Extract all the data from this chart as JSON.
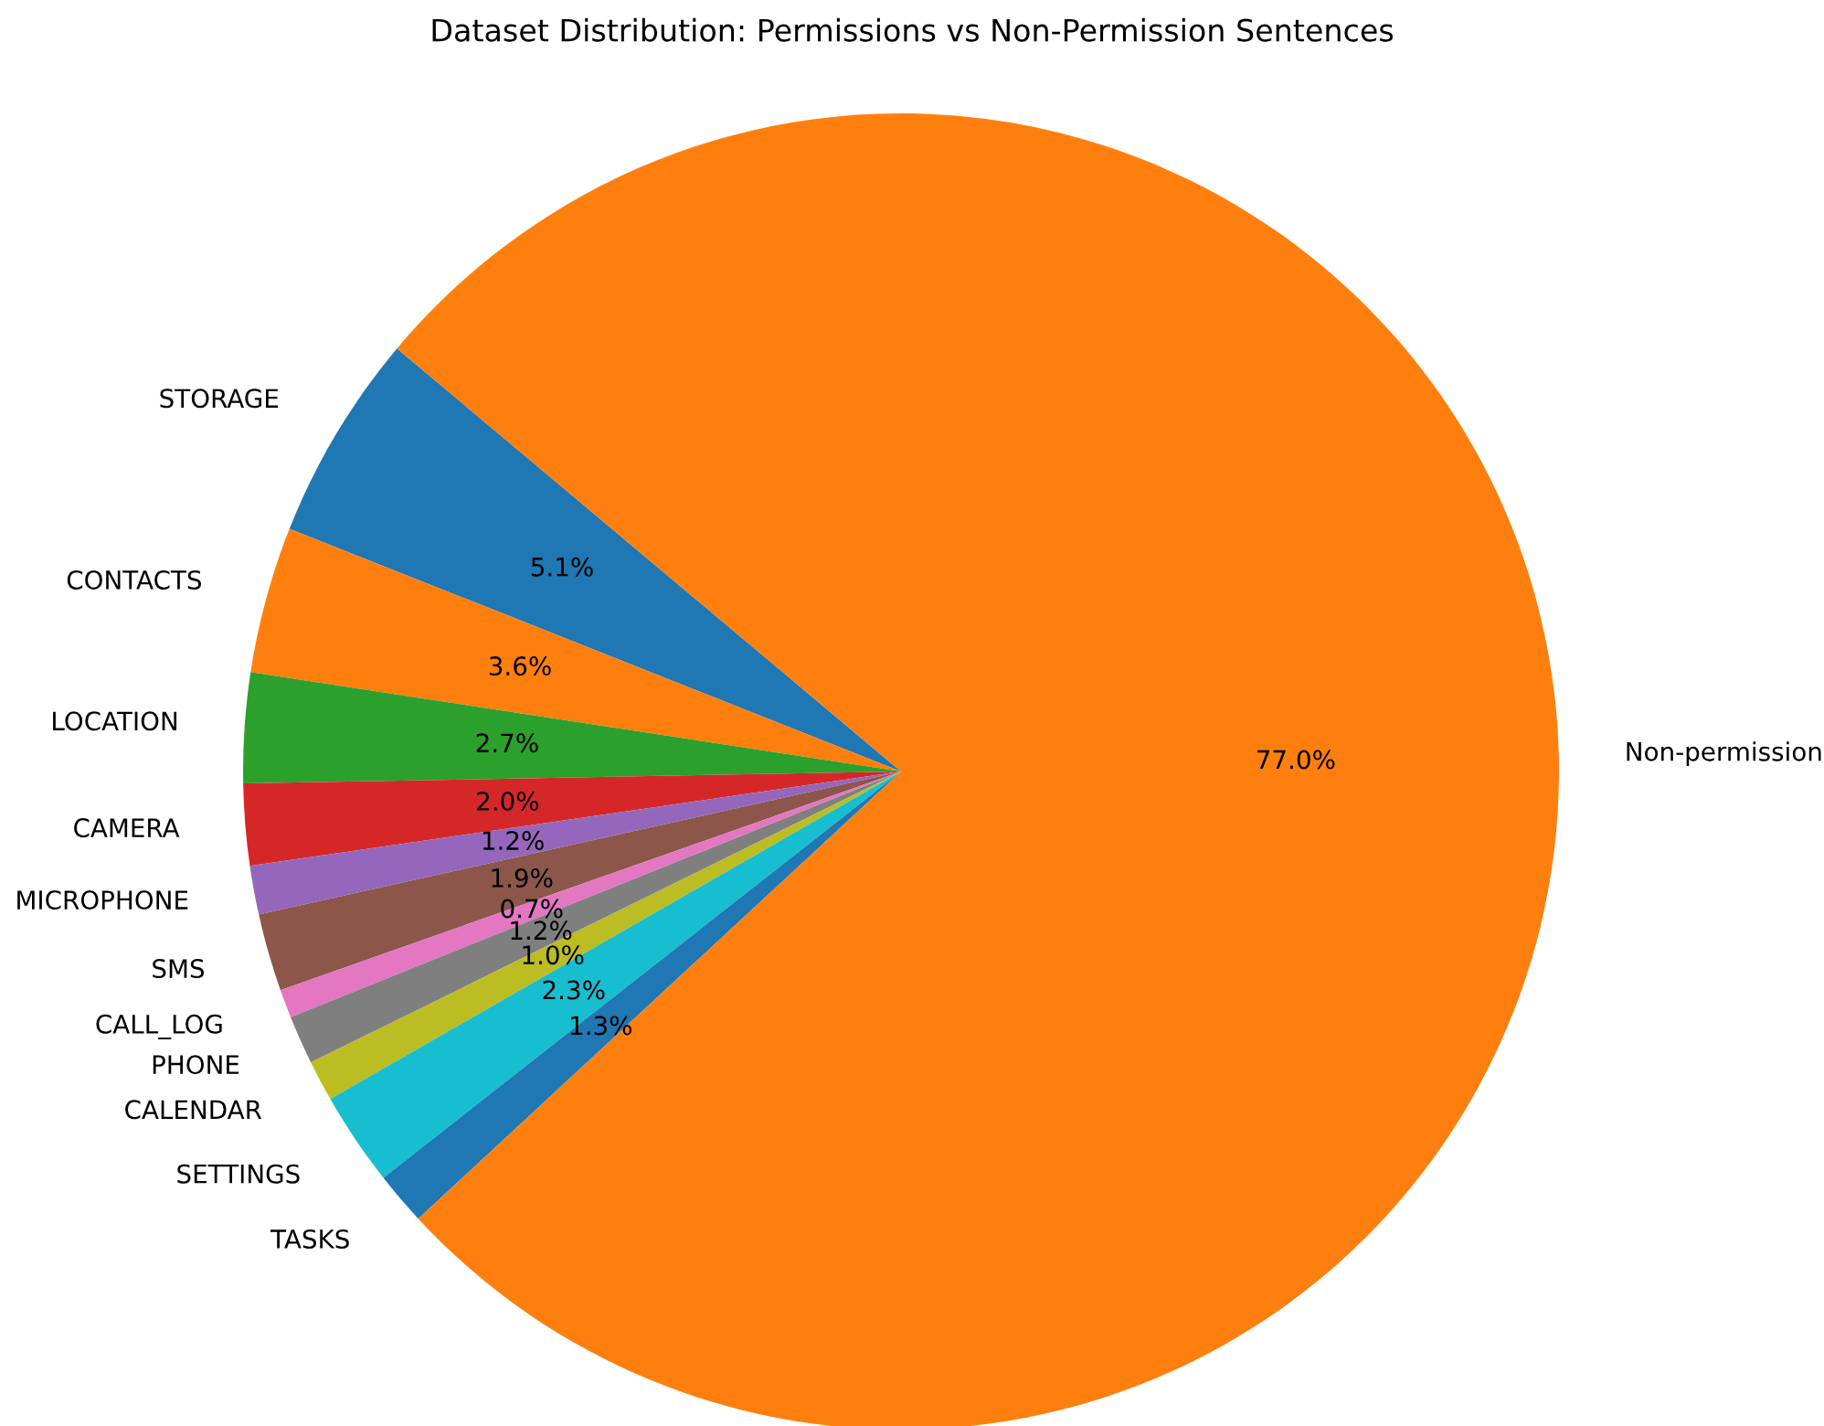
{
  "chart_data": {
    "type": "pie",
    "title": "Dataset Distribution: Permissions vs Non-Permission Sentences",
    "categories": [
      "STORAGE",
      "CONTACTS",
      "LOCATION",
      "CAMERA",
      "MICROPHONE",
      "SMS",
      "CALL_LOG",
      "PHONE",
      "CALENDAR",
      "SETTINGS",
      "TASKS",
      "Non-permission"
    ],
    "values": [
      5.1,
      3.6,
      2.7,
      2.0,
      1.2,
      1.9,
      0.7,
      1.2,
      1.0,
      2.3,
      1.3,
      77.0
    ],
    "colors": [
      "#1f77b4",
      "#ff7f0e",
      "#2ca02c",
      "#d62728",
      "#9467bd",
      "#8c564b",
      "#e377c2",
      "#7f7f7f",
      "#bcbd22",
      "#17becf",
      "#1f77b4",
      "#ff7f0e"
    ],
    "value_labels": [
      "5.1%",
      "3.6%",
      "2.7%",
      "2.0%",
      "1.2%",
      "1.9%",
      "0.7%",
      "1.2%",
      "1.0%",
      "2.3%",
      "1.3%",
      "77.0%"
    ]
  }
}
